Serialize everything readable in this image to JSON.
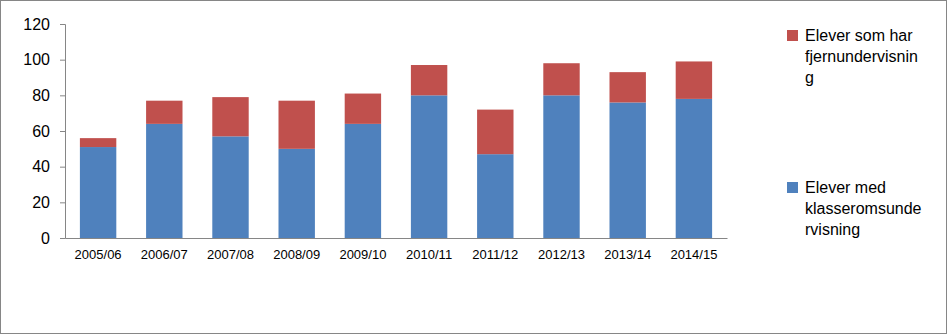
{
  "chart_data": {
    "type": "bar",
    "stacked": true,
    "grid": false,
    "legend": "right",
    "categories": [
      "2005/06",
      "2006/07",
      "2007/08",
      "2008/09",
      "2009/10",
      "2010/11",
      "2011/12",
      "2012/13",
      "2013/14",
      "2014/15"
    ],
    "series": [
      {
        "name": "Elever med klasseromsundervisning",
        "color": "#4f81bd",
        "values": [
          51,
          64,
          57,
          50,
          64,
          80,
          47,
          80,
          76,
          78
        ]
      },
      {
        "name": "Elever som har fjernundervisning",
        "color": "#c0504d",
        "values": [
          5,
          13,
          22,
          27,
          17,
          17,
          25,
          18,
          17,
          21
        ]
      }
    ],
    "ylim": [
      0,
      120
    ],
    "yticks": [
      0,
      20,
      40,
      60,
      80,
      100,
      120
    ]
  }
}
